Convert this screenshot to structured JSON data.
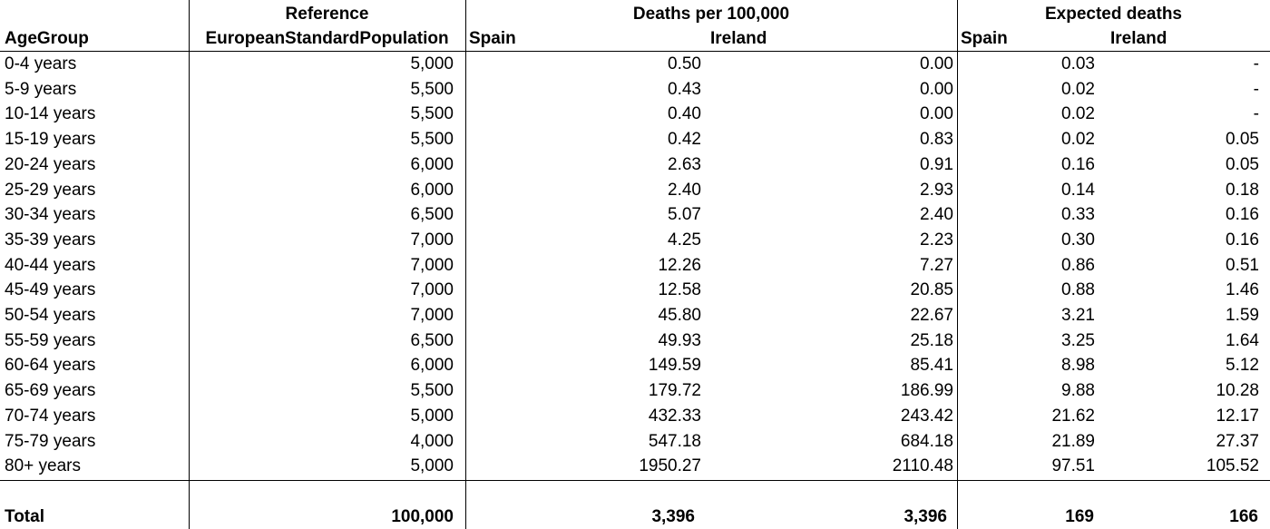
{
  "header": {
    "age_group": "AgeGroup",
    "reference": "Reference",
    "esp": "EuropeanStandardPopulation",
    "deaths_per_100k": "Deaths per 100,000",
    "expected_deaths": "Expected deaths",
    "spain": "Spain",
    "ireland": "Ireland"
  },
  "rows": [
    {
      "age": "0-4 years",
      "esp": "5,000",
      "spain_rate": "0.50",
      "ireland_rate": "0.00",
      "spain_exp": "0.03",
      "ireland_exp": "-"
    },
    {
      "age": "5-9 years",
      "esp": "5,500",
      "spain_rate": "0.43",
      "ireland_rate": "0.00",
      "spain_exp": "0.02",
      "ireland_exp": "-"
    },
    {
      "age": "10-14 years",
      "esp": "5,500",
      "spain_rate": "0.40",
      "ireland_rate": "0.00",
      "spain_exp": "0.02",
      "ireland_exp": "-"
    },
    {
      "age": "15-19 years",
      "esp": "5,500",
      "spain_rate": "0.42",
      "ireland_rate": "0.83",
      "spain_exp": "0.02",
      "ireland_exp": "0.05"
    },
    {
      "age": "20-24 years",
      "esp": "6,000",
      "spain_rate": "2.63",
      "ireland_rate": "0.91",
      "spain_exp": "0.16",
      "ireland_exp": "0.05"
    },
    {
      "age": "25-29 years",
      "esp": "6,000",
      "spain_rate": "2.40",
      "ireland_rate": "2.93",
      "spain_exp": "0.14",
      "ireland_exp": "0.18"
    },
    {
      "age": "30-34 years",
      "esp": "6,500",
      "spain_rate": "5.07",
      "ireland_rate": "2.40",
      "spain_exp": "0.33",
      "ireland_exp": "0.16"
    },
    {
      "age": "35-39 years",
      "esp": "7,000",
      "spain_rate": "4.25",
      "ireland_rate": "2.23",
      "spain_exp": "0.30",
      "ireland_exp": "0.16"
    },
    {
      "age": "40-44 years",
      "esp": "7,000",
      "spain_rate": "12.26",
      "ireland_rate": "7.27",
      "spain_exp": "0.86",
      "ireland_exp": "0.51"
    },
    {
      "age": "45-49 years",
      "esp": "7,000",
      "spain_rate": "12.58",
      "ireland_rate": "20.85",
      "spain_exp": "0.88",
      "ireland_exp": "1.46"
    },
    {
      "age": "50-54 years",
      "esp": "7,000",
      "spain_rate": "45.80",
      "ireland_rate": "22.67",
      "spain_exp": "3.21",
      "ireland_exp": "1.59"
    },
    {
      "age": "55-59 years",
      "esp": "6,500",
      "spain_rate": "49.93",
      "ireland_rate": "25.18",
      "spain_exp": "3.25",
      "ireland_exp": "1.64"
    },
    {
      "age": "60-64 years",
      "esp": "6,000",
      "spain_rate": "149.59",
      "ireland_rate": "85.41",
      "spain_exp": "8.98",
      "ireland_exp": "5.12"
    },
    {
      "age": "65-69 years",
      "esp": "5,500",
      "spain_rate": "179.72",
      "ireland_rate": "186.99",
      "spain_exp": "9.88",
      "ireland_exp": "10.28"
    },
    {
      "age": "70-74 years",
      "esp": "5,000",
      "spain_rate": "432.33",
      "ireland_rate": "243.42",
      "spain_exp": "21.62",
      "ireland_exp": "12.17"
    },
    {
      "age": "75-79 years",
      "esp": "4,000",
      "spain_rate": "547.18",
      "ireland_rate": "684.18",
      "spain_exp": "21.89",
      "ireland_exp": "27.37"
    },
    {
      "age": "80+ years",
      "esp": "5,000",
      "spain_rate": "1950.27",
      "ireland_rate": "2110.48",
      "spain_exp": "97.51",
      "ireland_exp": "105.52"
    }
  ],
  "total": {
    "label": "Total",
    "esp": "100,000",
    "spain_rate": "3,396",
    "ireland_rate": "3,396",
    "spain_exp": "169",
    "ireland_exp": "166"
  }
}
